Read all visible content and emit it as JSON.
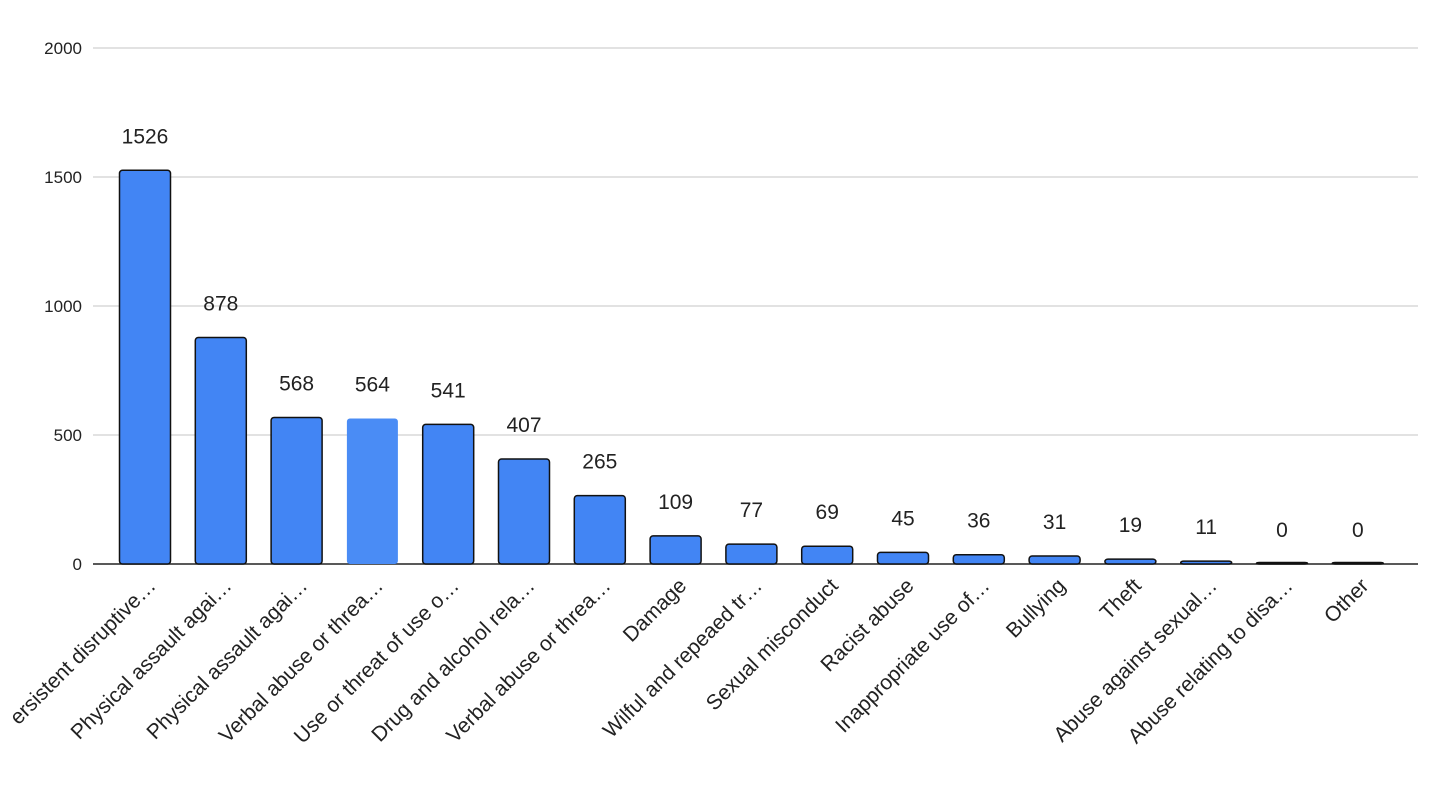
{
  "chart_data": {
    "type": "bar",
    "title": "",
    "xlabel": "",
    "ylabel": "",
    "ylim": [
      0,
      2000
    ],
    "yticks": [
      0,
      500,
      1000,
      1500,
      2000
    ],
    "grid": true,
    "legend": "none",
    "bar_color": "#4285f4",
    "highlight_color": "#4a8cf5",
    "highlight_index": 3,
    "categories": [
      "ersistent disruptive…",
      "Physical assault agai…",
      "Physical assault agai…",
      "Verbal abuse or threa…",
      "Use or threat of use o…",
      "Drug and alcohol rela…",
      "Verbal abuse or threa…",
      "Damage",
      "Wilful and repeaed tr…",
      "Sexual misconduct",
      "Racist abuse",
      "Inappropriate use of…",
      "Bullying",
      "Theft",
      "Abuse against sexual…",
      "Abuse relating to disa…",
      "Other"
    ],
    "values": [
      1526,
      878,
      568,
      564,
      541,
      407,
      265,
      109,
      77,
      69,
      45,
      36,
      31,
      19,
      11,
      0,
      0
    ]
  }
}
